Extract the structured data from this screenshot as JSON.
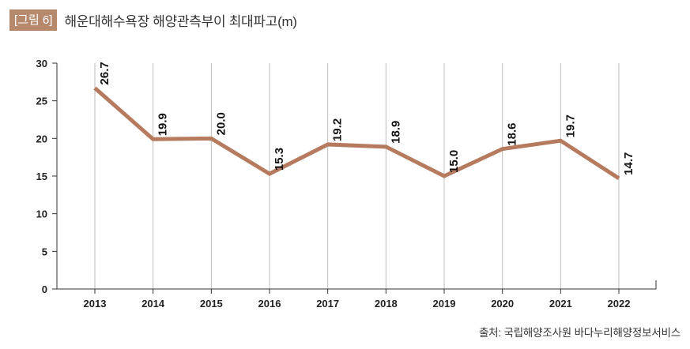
{
  "figure": {
    "label": "[그림 6]",
    "source": "출처: 국립해양조사원 바다누리해양정보서비스"
  },
  "colors": {
    "label_bg": "#b7896c",
    "label_text": "#ffffff",
    "line": "#b67b5f",
    "grid": "#bdbdbd",
    "axis": "#333333",
    "text": "#222222"
  },
  "chart_data": {
    "type": "line",
    "title": "해운대해수욕장 해양관측부이 최대파고(m)",
    "xlabel": "",
    "ylabel": "",
    "categories": [
      "2013",
      "2014",
      "2015",
      "2016",
      "2017",
      "2018",
      "2019",
      "2020",
      "2021",
      "2022"
    ],
    "values": [
      26.7,
      19.9,
      20.0,
      15.3,
      19.2,
      18.9,
      15.0,
      18.6,
      19.7,
      14.7
    ],
    "data_labels": [
      "26.7",
      "19.9",
      "20.0",
      "15.3",
      "19.2",
      "18.9",
      "15.0",
      "18.6",
      "19.7",
      "14.7"
    ],
    "ylim": [
      0,
      30
    ],
    "yticks": [
      0,
      5,
      10,
      15,
      20,
      25,
      30
    ],
    "grid": "vertical",
    "legend": "none"
  }
}
